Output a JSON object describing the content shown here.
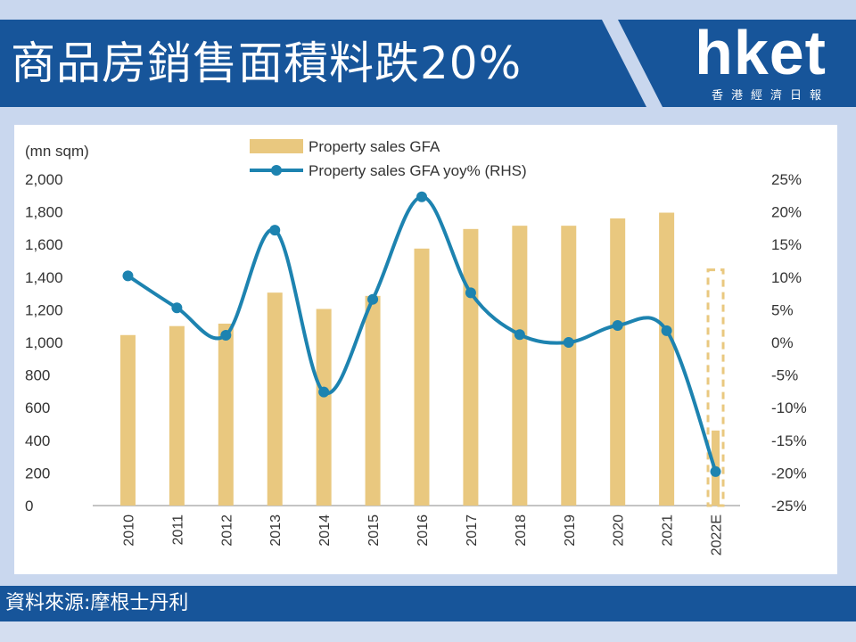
{
  "header": {
    "title": "商品房銷售面積料跌20%",
    "logo_text": "hket",
    "logo_subtitle": "香港經濟日報"
  },
  "footer": {
    "source": "資料來源:摩根士丹利"
  },
  "colors": {
    "header_bg": "#17559a",
    "bar": "#e9c87f",
    "line": "#1d83b0"
  },
  "chart_data": {
    "type": "bar",
    "categories": [
      "2010",
      "2011",
      "2012",
      "2013",
      "2014",
      "2015",
      "2016",
      "2017",
      "2018",
      "2019",
      "2020",
      "2021",
      "2022E"
    ],
    "left_axis_label": "(mn sqm)",
    "left_ylim": [
      0,
      2000
    ],
    "left_ticks": [
      "0",
      "200",
      "400",
      "600",
      "800",
      "1,000",
      "1,200",
      "1,400",
      "1,600",
      "1,800",
      "2,000"
    ],
    "right_ylim": [
      -25,
      25
    ],
    "right_ticks": [
      "-25%",
      "-20%",
      "-15%",
      "-10%",
      "-5%",
      "0%",
      "5%",
      "10%",
      "15%",
      "20%",
      "25%"
    ],
    "series": [
      {
        "name": "Property sales GFA",
        "type": "bar",
        "axis": "left",
        "values": [
          1045,
          1100,
          1115,
          1305,
          1205,
          1285,
          1575,
          1695,
          1715,
          1715,
          1760,
          1795,
          1445
        ],
        "style_note": "2022E shown as dashed outline bar"
      },
      {
        "name": "Property sales GFA yoy% (RHS)",
        "type": "line",
        "axis": "right",
        "values": [
          10.2,
          5.3,
          1.1,
          17.2,
          -7.6,
          6.6,
          22.3,
          7.6,
          1.2,
          0.0,
          2.6,
          1.8,
          -19.8
        ]
      }
    ],
    "legend_position": "top-center",
    "grid": false
  }
}
